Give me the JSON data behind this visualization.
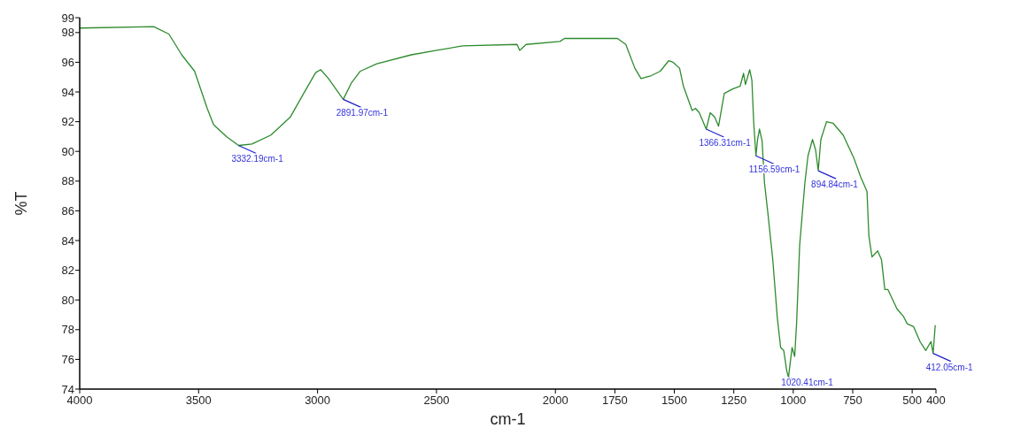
{
  "chart_data": {
    "type": "line",
    "xlabel": "cm-1",
    "ylabel": "%T",
    "xlim": [
      4000,
      400
    ],
    "xticks": [
      4000,
      3500,
      3000,
      2500,
      2000,
      1750,
      1500,
      1250,
      1000,
      750,
      500,
      400
    ],
    "ylim": [
      74,
      99
    ],
    "yticks": [
      74,
      76,
      78,
      80,
      82,
      84,
      86,
      88,
      90,
      92,
      94,
      96,
      98,
      99
    ],
    "grid": false,
    "line_style": "solid",
    "marker": "none",
    "series": [
      {
        "color": "#2e8b2e",
        "x": [
          4000,
          3689,
          3625,
          3571,
          3517,
          3464,
          3437,
          3383,
          3332,
          3276,
          3196,
          3115,
          3062,
          3008,
          2987,
          2954,
          2892,
          2858,
          2820,
          2751,
          2606,
          2499,
          2391,
          2161,
          2150,
          2123,
          1981,
          1962,
          1739,
          1704,
          1666,
          1640,
          1597,
          1559,
          1524,
          1505,
          1478,
          1462,
          1425,
          1411,
          1395,
          1366,
          1349,
          1330,
          1314,
          1290,
          1255,
          1223,
          1209,
          1201,
          1183,
          1174,
          1166,
          1157,
          1150,
          1142,
          1131,
          1121,
          1107,
          1086,
          1067,
          1053,
          1040,
          1027,
          1020,
          1008,
          1005,
          994,
          986,
          973,
          951,
          938,
          919,
          906,
          895,
          884,
          860,
          833,
          790,
          744,
          717,
          690,
          682,
          669,
          645,
          629,
          615,
          602,
          564,
          537,
          521,
          494,
          467,
          443,
          421,
          412,
          403
        ],
        "values": [
          98.3,
          98.4,
          97.9,
          96.5,
          95.4,
          92.9,
          91.8,
          91.0,
          90.4,
          90.5,
          91.1,
          92.3,
          93.8,
          95.3,
          95.5,
          94.9,
          93.5,
          94.6,
          95.4,
          95.9,
          96.5,
          96.8,
          97.1,
          97.2,
          96.8,
          97.2,
          97.4,
          97.6,
          97.6,
          97.2,
          95.6,
          94.9,
          95.1,
          95.4,
          96.1,
          96.0,
          95.6,
          94.4,
          92.75,
          92.9,
          92.6,
          91.5,
          92.6,
          92.3,
          91.7,
          93.9,
          94.2,
          94.4,
          95.25,
          94.5,
          95.5,
          94.8,
          91.9,
          89.7,
          90.8,
          91.5,
          90.7,
          87.9,
          85.9,
          82.7,
          78.8,
          76.8,
          76.6,
          75.2,
          74.8,
          76.4,
          76.8,
          76.2,
          78.4,
          83.7,
          87.9,
          89.7,
          90.8,
          90.1,
          88.7,
          90.8,
          92.0,
          91.9,
          91.1,
          89.5,
          88.3,
          87.3,
          84.3,
          82.9,
          83.3,
          82.7,
          80.7,
          80.7,
          79.4,
          78.9,
          78.4,
          78.2,
          77.2,
          76.6,
          77.2,
          76.4,
          78.3
        ]
      }
    ],
    "annotations": [
      {
        "text": "3332.19cm-1",
        "x": 3332.19,
        "y": 90.4
      },
      {
        "text": "2891.97cm-1",
        "x": 2891.97,
        "y": 93.5
      },
      {
        "text": "1366.31cm-1",
        "x": 1366.31,
        "y": 91.5
      },
      {
        "text": "1156.59cm-1",
        "x": 1156.59,
        "y": 89.7
      },
      {
        "text": "1020.41cm-1",
        "x": 1020.41,
        "y": 74.8
      },
      {
        "text": "894.84cm-1",
        "x": 894.84,
        "y": 88.7
      },
      {
        "text": "412.05cm-1",
        "x": 412.05,
        "y": 76.4
      }
    ]
  }
}
